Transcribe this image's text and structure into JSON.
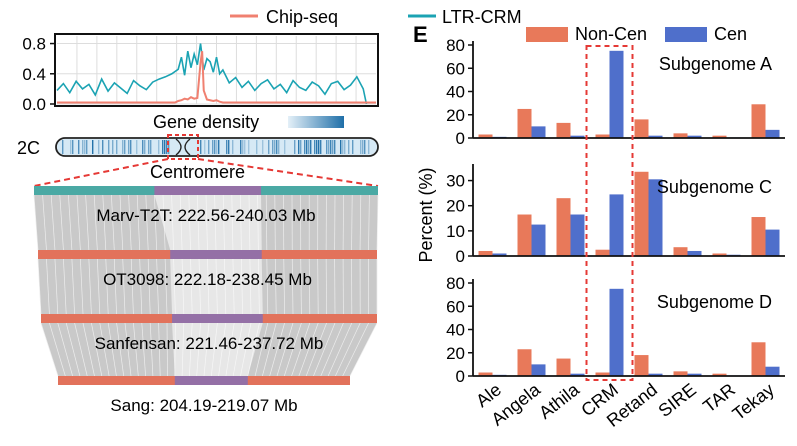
{
  "colors": {
    "chip": "#F08070",
    "ltr": "#1BA3B3",
    "noncen": "#E8795A",
    "cen": "#4F6FCB",
    "bar_orange": "#E2725B",
    "bar_purple": "#9470A6",
    "bar_teal": "#4AA9A4",
    "highlight": "#E53935",
    "gene_dark": "#1F6FA8",
    "gene_light": "#D6E9F5",
    "synteny": "#C9C9C9"
  },
  "left": {
    "legend": {
      "chip": "Chip-seq",
      "ltr": "LTR-CRM"
    },
    "gene_density_label": "Gene density",
    "chrom_label": "2C",
    "centromere_label": "Centromere",
    "genomes": [
      {
        "label": "Marv-T2T: 222.56-240.03 Mb",
        "cen_start": 0.35,
        "cen_end": 0.66
      },
      {
        "label": "OT3098: 222.18-238.45 Mb",
        "cen_start": 0.39,
        "cen_end": 0.66
      },
      {
        "label": "Sanfensan: 221.46-237.72 Mb",
        "cen_start": 0.39,
        "cen_end": 0.66
      },
      {
        "label": "Sang: 204.19-219.07 Mb",
        "cen_start": 0.4,
        "cen_end": 0.65
      }
    ]
  },
  "right": {
    "panel_letter": "E",
    "ylabel": "Percent (%)",
    "highlight_category": "CRM"
  },
  "chart_data": [
    {
      "type": "line",
      "title": "",
      "xlabel": "",
      "ylabel": "",
      "ylim": [
        0,
        0.9
      ],
      "yticks": [
        "0.0",
        "0.4",
        "0.8"
      ],
      "x_domain": [
        0,
        1
      ],
      "series": [
        {
          "name": "LTR-CRM",
          "x": [
            0.0,
            0.02,
            0.04,
            0.06,
            0.08,
            0.1,
            0.12,
            0.14,
            0.16,
            0.18,
            0.2,
            0.22,
            0.24,
            0.26,
            0.28,
            0.3,
            0.32,
            0.34,
            0.36,
            0.38,
            0.39,
            0.4,
            0.41,
            0.42,
            0.43,
            0.44,
            0.45,
            0.46,
            0.47,
            0.48,
            0.49,
            0.5,
            0.51,
            0.52,
            0.54,
            0.56,
            0.58,
            0.6,
            0.62,
            0.64,
            0.66,
            0.68,
            0.7,
            0.72,
            0.74,
            0.76,
            0.78,
            0.8,
            0.82,
            0.84,
            0.86,
            0.88,
            0.9,
            0.92,
            0.94,
            0.96,
            0.97
          ],
          "values": [
            0.18,
            0.27,
            0.15,
            0.3,
            0.2,
            0.26,
            0.12,
            0.33,
            0.17,
            0.28,
            0.21,
            0.14,
            0.31,
            0.24,
            0.19,
            0.29,
            0.33,
            0.36,
            0.4,
            0.46,
            0.62,
            0.38,
            0.7,
            0.48,
            0.66,
            0.52,
            0.8,
            0.45,
            0.6,
            0.56,
            0.42,
            0.62,
            0.4,
            0.45,
            0.28,
            0.35,
            0.22,
            0.3,
            0.18,
            0.27,
            0.32,
            0.2,
            0.26,
            0.15,
            0.31,
            0.22,
            0.18,
            0.29,
            0.24,
            0.13,
            0.27,
            0.3,
            0.19,
            0.25,
            0.36,
            0.2,
            0.0
          ]
        },
        {
          "name": "Chip-seq",
          "x": [
            0.0,
            0.37,
            0.38,
            0.39,
            0.4,
            0.41,
            0.42,
            0.43,
            0.44,
            0.45,
            0.455,
            0.46,
            0.47,
            0.48,
            0.49,
            0.5,
            0.51,
            0.52,
            1.0
          ],
          "values": [
            0.02,
            0.02,
            0.04,
            0.05,
            0.07,
            0.06,
            0.09,
            0.07,
            0.08,
            0.55,
            0.7,
            0.18,
            0.06,
            0.05,
            0.04,
            0.05,
            0.03,
            0.02,
            0.02
          ]
        }
      ]
    },
    {
      "type": "bar",
      "title": "Subgenome A",
      "categories": [
        "Ale",
        "Angela",
        "Athila",
        "CRM",
        "Retand",
        "SIRE",
        "TAR",
        "Tekay"
      ],
      "xlabel": "",
      "ylabel": "Percent (%)",
      "ylim": [
        0,
        80
      ],
      "yticks": [
        0,
        20,
        40,
        60,
        80
      ],
      "series": [
        {
          "name": "Non-Cen",
          "values": [
            3,
            25,
            13,
            3,
            16,
            4,
            2,
            29
          ]
        },
        {
          "name": "Cen",
          "values": [
            1,
            10,
            2,
            75,
            2,
            2,
            0.5,
            7
          ]
        }
      ]
    },
    {
      "type": "bar",
      "title": "Subgenome C",
      "categories": [
        "Ale",
        "Angela",
        "Athila",
        "CRM",
        "Retand",
        "SIRE",
        "TAR",
        "Tekay"
      ],
      "xlabel": "",
      "ylabel": "Percent (%)",
      "ylim": [
        0,
        35
      ],
      "yticks": [
        0,
        10,
        20,
        30
      ],
      "series": [
        {
          "name": "Non-Cen",
          "values": [
            2,
            16.5,
            23,
            2.5,
            33.5,
            3.5,
            1,
            15.5
          ]
        },
        {
          "name": "Cen",
          "values": [
            1,
            12.5,
            16.5,
            24.5,
            30.5,
            2,
            0.5,
            10.5
          ]
        }
      ]
    },
    {
      "type": "bar",
      "title": "Subgenome D",
      "categories": [
        "Ale",
        "Angela",
        "Athila",
        "CRM",
        "Retand",
        "SIRE",
        "TAR",
        "Tekay"
      ],
      "xlabel": "",
      "ylabel": "Percent (%)",
      "ylim": [
        0,
        80
      ],
      "yticks": [
        0,
        20,
        40,
        60,
        80
      ],
      "series": [
        {
          "name": "Non-Cen",
          "values": [
            3,
            23,
            15,
            3,
            18,
            4,
            2,
            29
          ]
        },
        {
          "name": "Cen",
          "values": [
            1,
            10,
            2,
            75,
            2,
            2,
            0.5,
            8
          ]
        }
      ]
    }
  ]
}
